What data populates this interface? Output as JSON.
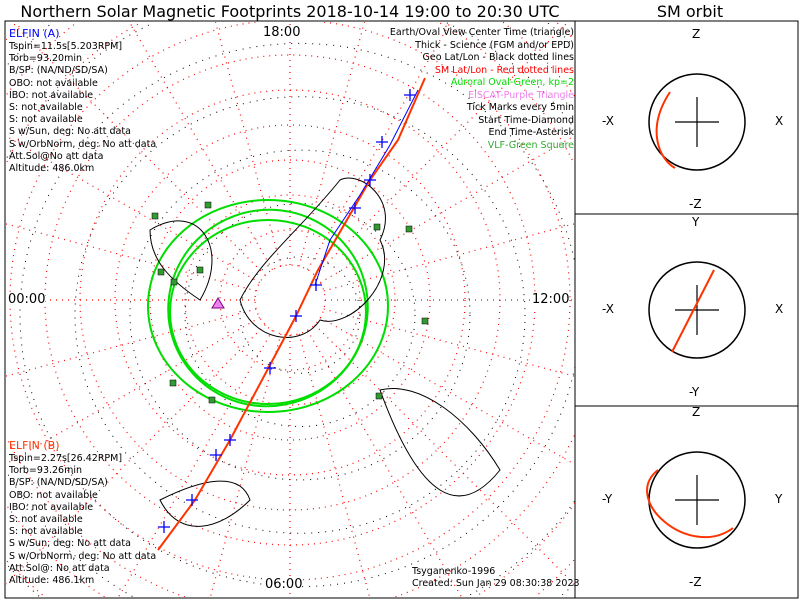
{
  "title": "Northern Solar Magnetic Footprints 2018-10-14 19:00 to 20:30 UTC",
  "orbit_title": "SM orbit",
  "time_labels": {
    "top": "18:00",
    "left": "00:00",
    "right": "12:00",
    "bottom": "06:00"
  },
  "elfin_a": {
    "name": "ELFIN (A)",
    "color": "#0000ff",
    "lines": [
      "Tspin=11.5s[5.203RPM]",
      "Torb=93.20min",
      "B/SP: (NA/ND/SD/SA)",
      "OBO: not available",
      "IBO: not available",
      "S: not available",
      "S: not available",
      "S w/Sun, deg: No att data",
      "S w/OrbNorm, deg: No att data",
      "Att.Sol@No att data",
      "Altitude: 486.0km"
    ]
  },
  "elfin_b": {
    "name": "ELFIN (B)",
    "color": "#ff3300",
    "lines": [
      "Tspin=2.27s[26.42RPM]",
      "Torb=93.26min",
      "B/SP: (NA/ND/SD/SA)",
      "OBO: not available",
      "IBO: not available",
      "S: not available",
      "S: not available",
      "S w/Sun, deg: No att data",
      "S w/OrbNorm, deg: No att data",
      "Att.Sol@: No att data",
      "Altitude: 486.1km"
    ]
  },
  "legend": [
    {
      "text": "Earth/Oval View Center Time (triangle)",
      "color": "#000000"
    },
    {
      "text": "Thick - Science (FGM and/or EPD)",
      "color": "#000000"
    },
    {
      "text": "Geo Lat/Lon - Black dotted lines",
      "color": "#000000"
    },
    {
      "text": "SM Lat/Lon - Red dotted lines",
      "color": "#ff0000"
    },
    {
      "text": "Auroral Oval-Green, kp=2",
      "color": "#00dd00"
    },
    {
      "text": "EISCAT-Purple Triangle",
      "color": "#ee82ee"
    },
    {
      "text": "Tick Marks every 5min",
      "color": "#000000"
    },
    {
      "text": "Start Time-Diamond",
      "color": "#000000"
    },
    {
      "text": "End Time-Asterisk",
      "color": "#000000"
    },
    {
      "text": "VLF-Green Square",
      "color": "#33aa33"
    }
  ],
  "footer": {
    "model": "Tsyganenko-1996",
    "created": "Created: Sun Jan 29 08:30:38 2023"
  },
  "orbit_panels": [
    {
      "top": "Z",
      "bottom": "-Z",
      "left": "-X",
      "right": "X"
    },
    {
      "top": "Y",
      "bottom": "-Y",
      "left": "-X",
      "right": "X"
    },
    {
      "top": "Z",
      "bottom": "-Z",
      "left": "-Y",
      "right": "Y"
    }
  ]
}
